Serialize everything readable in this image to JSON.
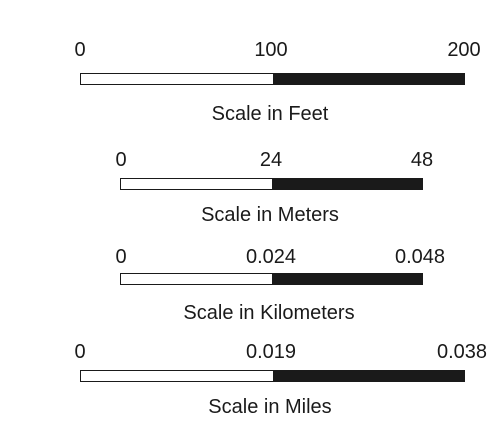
{
  "scale_bars": [
    {
      "caption": "Scale in Feet",
      "ticks": [
        "0",
        "100",
        "200"
      ],
      "dark_fraction": 0.5
    },
    {
      "caption": "Scale in Meters",
      "ticks": [
        "0",
        "24",
        "48"
      ],
      "dark_fraction": 0.5
    },
    {
      "caption": "Scale in Kilometers",
      "ticks": [
        "0",
        "0.024",
        "0.048"
      ],
      "dark_fraction": 0.5
    },
    {
      "caption": "Scale in Miles",
      "ticks": [
        "0",
        "0.019",
        "0.038"
      ],
      "dark_fraction": 0.5
    }
  ],
  "colors": {
    "bar_dark": "#1a1a1a",
    "bar_light": "#ffffff"
  }
}
